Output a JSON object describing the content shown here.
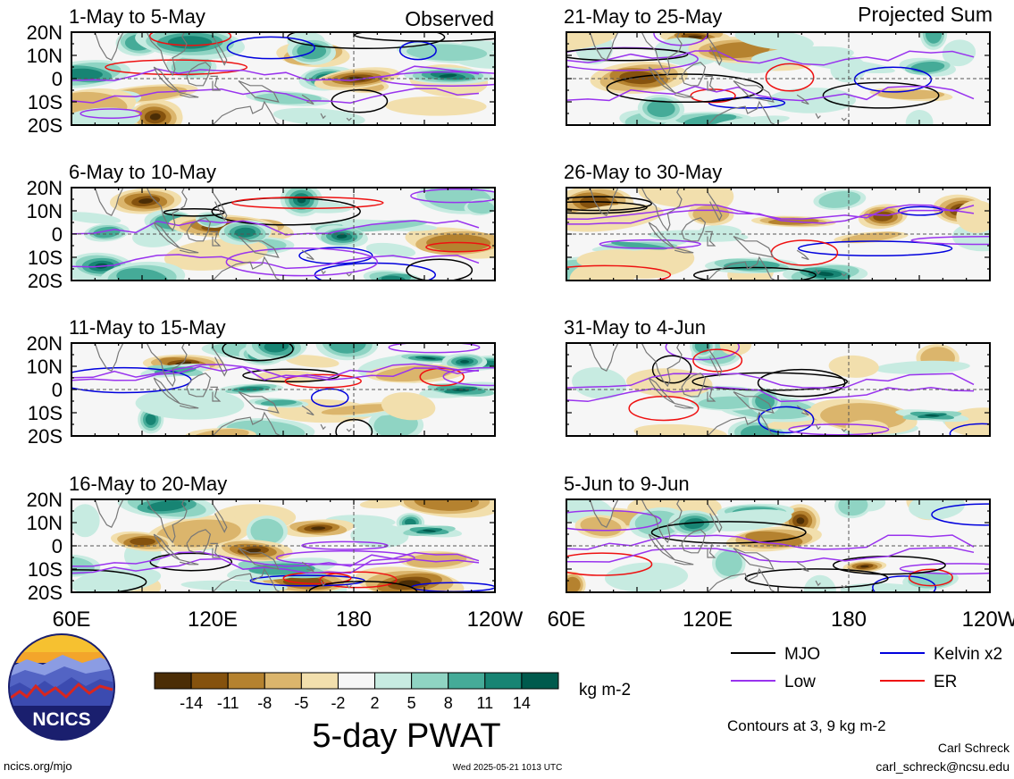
{
  "chart_data": {
    "type": "heatmap",
    "title": "5-day PWAT",
    "units": "kg m-2",
    "columns": [
      {
        "label": "Observed",
        "panels": [
          "1-May to 5-May",
          "6-May to 10-May",
          "11-May to 15-May",
          "16-May to 20-May"
        ]
      },
      {
        "label": "Projected Sum",
        "panels": [
          "21-May to 25-May",
          "26-May to 30-May",
          "31-May to 4-Jun",
          "5-Jun to 9-Jun"
        ]
      }
    ],
    "y_ticks": [
      "20N",
      "10N",
      "0",
      "10S",
      "20S"
    ],
    "y_values": [
      20,
      10,
      0,
      -10,
      -20
    ],
    "x_ticks": [
      "60E",
      "120E",
      "180",
      "120W"
    ],
    "x_values": [
      60,
      120,
      180,
      240
    ],
    "xlim": [
      60,
      240
    ],
    "ylim": [
      -20,
      20
    ],
    "colorbar": {
      "labels": [
        "-14",
        "-11",
        "-8",
        "-5",
        "-2",
        "2",
        "5",
        "8",
        "11",
        "14"
      ],
      "values": [
        -14,
        -11,
        -8,
        -5,
        -2,
        2,
        5,
        8,
        11,
        14
      ],
      "colors": [
        "#4b2d06",
        "#85520e",
        "#b5822f",
        "#dbb56c",
        "#f2dfad",
        "#f6f6f6",
        "#c7ebe1",
        "#8fd4c3",
        "#45ab98",
        "#178473",
        "#005a4d"
      ]
    },
    "legend": [
      {
        "name": "MJO",
        "color": "#000000"
      },
      {
        "name": "Kelvin x2",
        "color": "#0000dd"
      },
      {
        "name": "Low",
        "color": "#9933ee"
      },
      {
        "name": "ER",
        "color": "#ee1111"
      }
    ],
    "contour_note": "Contours at 3, 9 kg m-2"
  },
  "logo": {
    "text": "NCICS"
  },
  "footer": {
    "url": "ncics.org/mjo",
    "timestamp": "Wed 2025-05-21 1013 UTC",
    "author": "Carl Schreck",
    "email": "carl_schreck@ncsu.edu"
  }
}
